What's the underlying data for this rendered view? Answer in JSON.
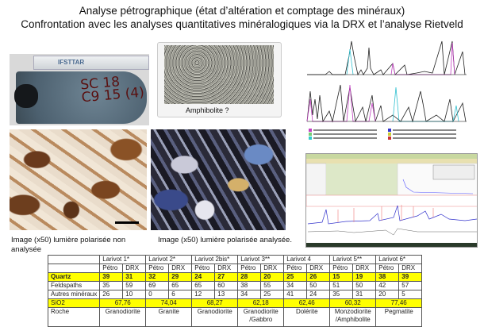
{
  "title": {
    "line1": "Analyse pétrographique (état d’altération et comptage des minéraux)",
    "line2": "Confrontation avec les analyses quantitatives minéralogiques via la DRX et l’analyse Rietveld"
  },
  "images": {
    "core": {
      "ruler_brand": "IFSTTAR",
      "sample_mark_line1": "SC 18",
      "sample_mark_line2": "C9 15 (4)"
    },
    "slide_label": "Amphibolite ?",
    "caption_non_analysed": "Image (x50) lumière polarisée non analysée",
    "caption_analysed": "Image (x50) lumière polarisée analysée."
  },
  "table": {
    "samples": [
      "Larivot 1*",
      "Larivot 2*",
      "Larivot 2bis*",
      "Larivot 3**",
      "Larivot 4",
      "Larivot 5**",
      "Larivot 6*"
    ],
    "subheaders": [
      "Pétro",
      "DRX"
    ],
    "rows": [
      {
        "label": "Quartz",
        "values": [
          "39",
          "31",
          "32",
          "29",
          "24",
          "27",
          "28",
          "20",
          "25",
          "26",
          "15",
          "19",
          "38",
          "39"
        ]
      },
      {
        "label": "Feldspaths",
        "values": [
          "35",
          "59",
          "69",
          "65",
          "65",
          "60",
          "38",
          "55",
          "34",
          "50",
          "51",
          "50",
          "42",
          "57"
        ]
      },
      {
        "label": "Autres minéraux",
        "values": [
          "26",
          "10",
          "0",
          "6",
          "12",
          "13",
          "34",
          "25",
          "41",
          "24",
          "35",
          "31",
          "20",
          "5"
        ]
      }
    ],
    "sio2": {
      "label": "SiO2",
      "values": [
        "67,76",
        "74,04",
        "68,27",
        "62,18",
        "62,46",
        "60,32",
        "77,46"
      ]
    },
    "roche": {
      "label": "Roche",
      "line1": [
        "Granodiorite",
        "Granite",
        "Granodiorite",
        "Granodiorite",
        "Dolérite",
        "Monzodiorite",
        "Pegmatite"
      ],
      "line2": [
        "",
        "",
        "",
        "/Gabbro",
        "",
        "/Amphibolite",
        ""
      ]
    }
  },
  "colors": {
    "highlight": "#ffff00"
  }
}
